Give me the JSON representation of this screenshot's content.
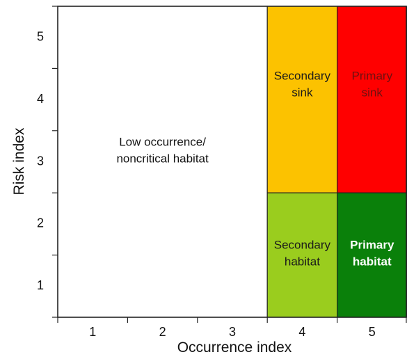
{
  "chart_data": {
    "type": "heatmap",
    "xlabel": "Occurrence index",
    "ylabel": "Risk index",
    "xlim": [
      0.5,
      5.5
    ],
    "ylim": [
      0.5,
      5.5
    ],
    "x_ticks": [
      "1",
      "2",
      "3",
      "4",
      "5"
    ],
    "y_ticks": [
      "1",
      "2",
      "3",
      "4",
      "5"
    ],
    "regions": [
      {
        "label_lines": [
          "Low occurrence/",
          "noncritical habitat"
        ],
        "x_range": [
          0.5,
          3.5
        ],
        "y_range": [
          0.5,
          5.5
        ],
        "color": "#ffffff",
        "text_color": "#111111",
        "bold": false
      },
      {
        "label_lines": [
          "Secondary",
          "sink"
        ],
        "x_range": [
          3.5,
          4.5
        ],
        "y_range": [
          2.5,
          5.5
        ],
        "color": "#fcc200",
        "text_color": "#1a1a1a",
        "bold": false
      },
      {
        "label_lines": [
          "Primary",
          "sink"
        ],
        "x_range": [
          4.5,
          5.5
        ],
        "y_range": [
          2.5,
          5.5
        ],
        "color": "#ff0000",
        "text_color": "#6e1010",
        "bold": false
      },
      {
        "label_lines": [
          "Secondary",
          "habitat"
        ],
        "x_range": [
          3.5,
          4.5
        ],
        "y_range": [
          0.5,
          2.5
        ],
        "color": "#9acd1e",
        "text_color": "#1a1a1a",
        "bold": false
      },
      {
        "label_lines": [
          "Primary",
          "habitat"
        ],
        "x_range": [
          4.5,
          5.5
        ],
        "y_range": [
          0.5,
          2.5
        ],
        "color": "#0a800a",
        "text_color": "#ffffff",
        "bold": true
      }
    ]
  }
}
